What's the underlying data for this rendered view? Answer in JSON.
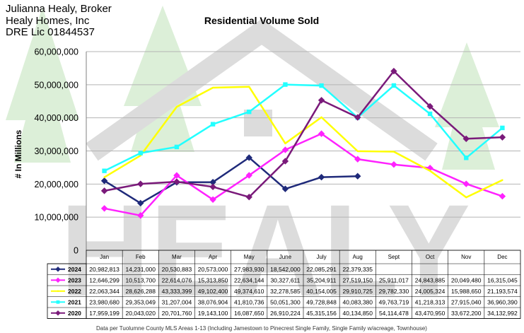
{
  "header": {
    "line1": "Julianna Healy, Broker",
    "line2": "Healy Homes, Inc",
    "line3": "DRE Lic 01844537"
  },
  "watermark": {
    "text": "HEALY"
  },
  "footnote": "Data per Tuolumne County MLS Areas 1-13 (Including Jamestown to Pinecrest Single Family, Single Family w/acreage, Townhouse)",
  "colors": {
    "grid": "#b4b4b4",
    "watermark_gray": "#dcdcdc",
    "watermark_green": "#dcefd8"
  },
  "chart_data": {
    "type": "line",
    "title": "Residential Volume Sold",
    "xlabel": "",
    "ylabel": "# In Millions",
    "ylim": [
      0,
      60000000
    ],
    "yticks": [
      "0",
      "10,000,000",
      "20,000,000",
      "30,000,000",
      "40,000,000",
      "50,000,000",
      "60,000,000"
    ],
    "yticks_values": [
      0,
      10000000,
      20000000,
      30000000,
      40000000,
      50000000,
      60000000
    ],
    "grid": true,
    "categories": [
      "Jan",
      "Feb",
      "Mar",
      "Apr",
      "May",
      "June",
      "July",
      "Aug",
      "Sept",
      "Oct",
      "Nov",
      "Dec"
    ],
    "series": [
      {
        "name": "2024",
        "color": "#1f2a7a",
        "marker": "diamond",
        "values": [
          20982813,
          14231000,
          20530883,
          20573000,
          27983930,
          18542000,
          22085291,
          22379335,
          null,
          null,
          null,
          null
        ],
        "labels": [
          "20,982,813",
          "14,231,000",
          "20,530,883",
          "20,573,000",
          "27,983,930",
          "18,542,000",
          "22,085,291",
          "22,379,335",
          "",
          "",
          "",
          ""
        ]
      },
      {
        "name": "2023",
        "color": "#ff22ff",
        "marker": "diamond",
        "values": [
          12646299,
          10513700,
          22614076,
          15313850,
          22634144,
          30327611,
          35204911,
          27519150,
          25911017,
          24843885,
          20049480,
          16315045
        ],
        "labels": [
          "12,646,299",
          "10,513,700",
          "22,614,076",
          "15,313,850",
          "22,634,144",
          "30,327,611",
          "35,204,911",
          "27,519,150",
          "25,911,017",
          "24,843,885",
          "20,049,480",
          "16,315,045"
        ]
      },
      {
        "name": "2022",
        "color": "#ffff00",
        "marker": "none",
        "values": [
          22063344,
          28626288,
          43333399,
          49102400,
          49374610,
          32278585,
          40154005,
          29910725,
          29782330,
          24005324,
          15988650,
          21193574
        ],
        "labels": [
          "22,063,344",
          "28,626,288",
          "43,333,399",
          "49,102,400",
          "49,374,610",
          "32,278,585",
          "40,154,005",
          "29,910,725",
          "29,782,330",
          "24,005,324",
          "15,988,650",
          "21,193,574"
        ]
      },
      {
        "name": "2021",
        "color": "#22ffff",
        "marker": "square",
        "values": [
          23980680,
          29353049,
          31207004,
          38076904,
          41810736,
          50051300,
          49728848,
          40083380,
          49763719,
          41218313,
          27915040,
          36960390
        ],
        "labels": [
          "23,980,680",
          "29,353,049",
          "31,207,004",
          "38,076,904",
          "41,810,736",
          "50,051,300",
          "49,728,848",
          "40,083,380",
          "49,763,719",
          "41,218,313",
          "27,915,040",
          "36,960,390"
        ]
      },
      {
        "name": "2020",
        "color": "#7a1a7a",
        "marker": "diamond",
        "values": [
          17959199,
          20043020,
          20701760,
          19143100,
          16087650,
          26910224,
          45315156,
          40134850,
          54114478,
          43470950,
          33672200,
          34132992
        ],
        "labels": [
          "17,959,199",
          "20,043,020",
          "20,701,760",
          "19,143,100",
          "16,087,650",
          "26,910,224",
          "45,315,156",
          "40,134,850",
          "54,114,478",
          "43,470,950",
          "33,672,200",
          "34,132,992"
        ]
      }
    ]
  }
}
